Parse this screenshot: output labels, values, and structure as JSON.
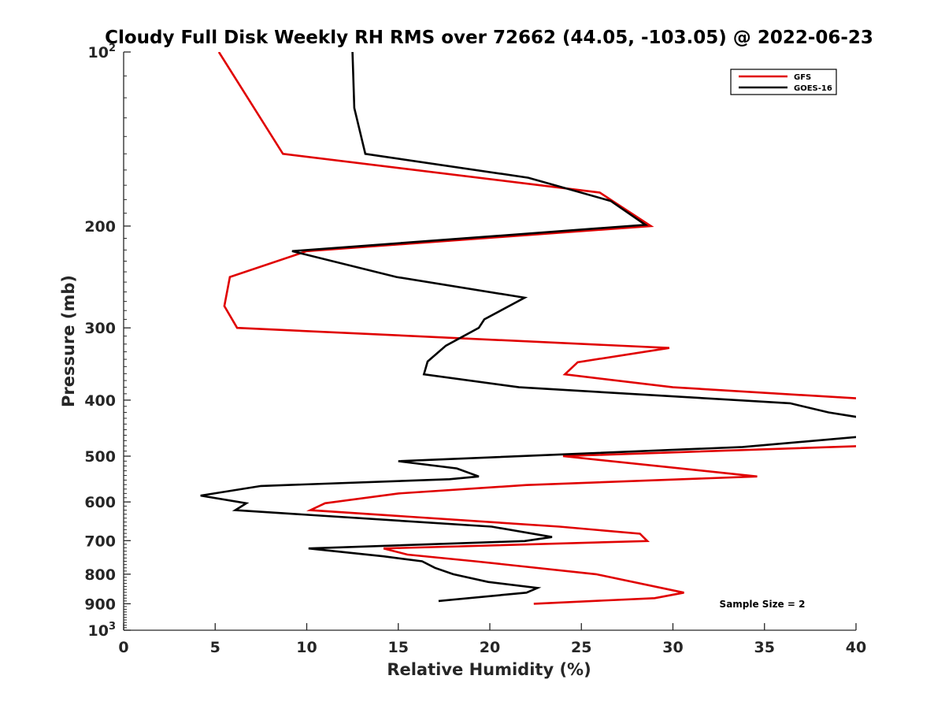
{
  "chart_data": {
    "type": "line",
    "title": "Cloudy Full Disk Weekly RH RMS over 72662 (44.05, -103.05) @ 2022-06-23",
    "xlabel": "Relative Humidity (%)",
    "ylabel": "Pressure (mb)",
    "xlim": [
      0,
      40
    ],
    "ylim": [
      100,
      1000
    ],
    "yscale": "log",
    "y_reversed": true,
    "grid": false,
    "legend_position": "top-right",
    "x_ticks": [
      "0",
      "5",
      "10",
      "15",
      "20",
      "25",
      "30",
      "35",
      "40"
    ],
    "y_ticks": [
      {
        "value": 100,
        "base": "10",
        "exp": "2"
      },
      {
        "value": 200,
        "label": "200"
      },
      {
        "value": 300,
        "label": "300"
      },
      {
        "value": 400,
        "label": "400"
      },
      {
        "value": 500,
        "label": "500"
      },
      {
        "value": 600,
        "label": "600"
      },
      {
        "value": 700,
        "label": "700"
      },
      {
        "value": 800,
        "label": "800"
      },
      {
        "value": 900,
        "label": "900"
      },
      {
        "value": 1000,
        "base": "10",
        "exp": "3"
      }
    ],
    "annotation": "Sample Size = 2",
    "series": [
      {
        "name": "GFS",
        "color": "#e00000",
        "points": [
          [
            5.2,
            100
          ],
          [
            8.7,
            150
          ],
          [
            26.0,
            175
          ],
          [
            28.8,
            200
          ],
          [
            10.0,
            221
          ],
          [
            5.8,
            245
          ],
          [
            5.5,
            275
          ],
          [
            6.2,
            300
          ],
          [
            29.8,
            325
          ],
          [
            24.8,
            344
          ],
          [
            24.1,
            361
          ],
          [
            30.0,
            380
          ],
          [
            40.5,
            398
          ],
          [
            40.5,
            480
          ],
          [
            24.0,
            500
          ],
          [
            34.6,
            542
          ],
          [
            22.0,
            561
          ],
          [
            15.0,
            580
          ],
          [
            11.0,
            603
          ],
          [
            10.2,
            620
          ],
          [
            23.8,
            662
          ],
          [
            28.2,
            681
          ],
          [
            28.6,
            701
          ],
          [
            14.2,
            722
          ],
          [
            15.5,
            740
          ],
          [
            19.2,
            760
          ],
          [
            25.8,
            800
          ],
          [
            30.6,
            861
          ],
          [
            29.0,
            880
          ],
          [
            22.4,
            900
          ]
        ]
      },
      {
        "name": "GOES-16",
        "color": "#000000",
        "points": [
          [
            12.5,
            100
          ],
          [
            12.6,
            125
          ],
          [
            13.2,
            150
          ],
          [
            22.1,
            165
          ],
          [
            26.6,
            181
          ],
          [
            28.5,
            199
          ],
          [
            9.2,
            221
          ],
          [
            14.9,
            245
          ],
          [
            21.9,
            266
          ],
          [
            19.7,
            290
          ],
          [
            19.4,
            300
          ],
          [
            17.6,
            322
          ],
          [
            16.6,
            343
          ],
          [
            16.4,
            361
          ],
          [
            21.6,
            380
          ],
          [
            36.4,
            405
          ],
          [
            38.5,
            420
          ],
          [
            40.5,
            430
          ],
          [
            40.5,
            462
          ],
          [
            33.8,
            482
          ],
          [
            15.0,
            510
          ],
          [
            18.2,
            525
          ],
          [
            19.4,
            542
          ],
          [
            17.8,
            548
          ],
          [
            7.5,
            563
          ],
          [
            4.2,
            585
          ],
          [
            6.7,
            603
          ],
          [
            6.1,
            620
          ],
          [
            20.1,
            662
          ],
          [
            23.4,
            690
          ],
          [
            21.9,
            701
          ],
          [
            10.1,
            722
          ],
          [
            14.2,
            745
          ],
          [
            16.3,
            760
          ],
          [
            17.0,
            780
          ],
          [
            18.0,
            800
          ],
          [
            19.9,
            825
          ],
          [
            22.6,
            845
          ],
          [
            22.0,
            861
          ],
          [
            17.2,
            890
          ]
        ]
      }
    ]
  }
}
